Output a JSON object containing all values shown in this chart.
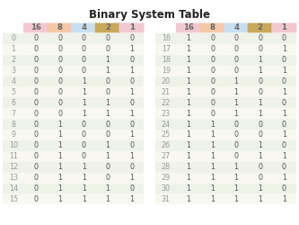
{
  "title": "Binary System Table",
  "col_headers": [
    "16",
    "8",
    "4",
    "2",
    "1"
  ],
  "col_header_colors": [
    "#f2c8d0",
    "#f5c8a8",
    "#c8dff0",
    "#c8a85a",
    "#f2c8d0"
  ],
  "row_bg_even": "#eef2e8",
  "row_bg_odd": "#f8f8f0",
  "index_color": "#999999",
  "data_color": "#555555",
  "header_text_color": "#666666",
  "title_color": "#222222",
  "bg_color": "#ffffff",
  "title_fontsize": 8.5,
  "cell_fontsize": 5.8,
  "header_fontsize": 6.2
}
